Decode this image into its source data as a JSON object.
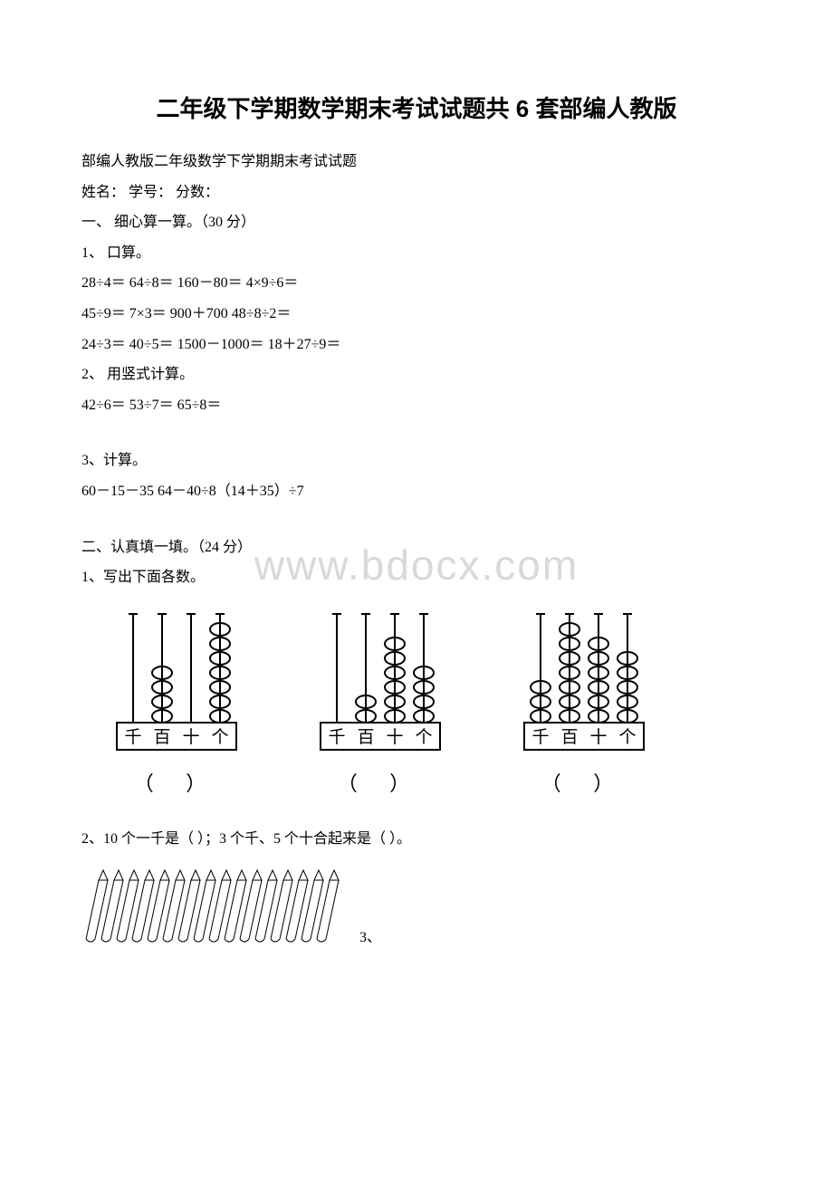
{
  "title": "二年级下学期数学期末考试试题共 6 套部编人教版",
  "subtitle": "部编人教版二年级数学下学期期末考试试题",
  "header_fields": "姓名：  学号：  分数：",
  "section1": {
    "heading": "一、 细心算一算。（30 分）",
    "q1_label": "1、 口算。",
    "q1_line1": "28÷4＝ 64÷8＝ 160－80＝ 4×9÷6＝",
    "q1_line2": "45÷9＝ 7×3＝ 900＋700 48÷8÷2＝",
    "q1_line3": "24÷3＝ 40÷5＝ 1500－1000＝ 18＋27÷9＝",
    "q2_label": "2、 用竖式计算。",
    "q2_line1": "42÷6＝ 53÷7＝ 65÷8＝",
    "q3_label": "3、计算。",
    "q3_line1": " 60－15－35 64－40÷8（14＋35）÷7"
  },
  "section2": {
    "heading": "二、认真填一填。（24 分）",
    "q1_label": "1、写出下面各数。",
    "q2_text": "2、10 个一千是（ ）；3 个千、5 个十合起来是（ ）。",
    "q3_suffix": "3、"
  },
  "abacus": {
    "labels": [
      "千",
      "百",
      "十",
      "个"
    ],
    "units": [
      {
        "beads": [
          0,
          4,
          0,
          7
        ],
        "paren": "（    ）"
      },
      {
        "beads": [
          0,
          2,
          6,
          4
        ],
        "paren": "（    ）"
      },
      {
        "beads": [
          3,
          7,
          6,
          5
        ],
        "paren": "（    ）"
      }
    ],
    "colors": {
      "frame": "#000000",
      "bead": "#000000",
      "rod": "#000000"
    }
  },
  "pencils": {
    "count": 16,
    "color": "#000000"
  },
  "watermark": "www.bdocx.com"
}
